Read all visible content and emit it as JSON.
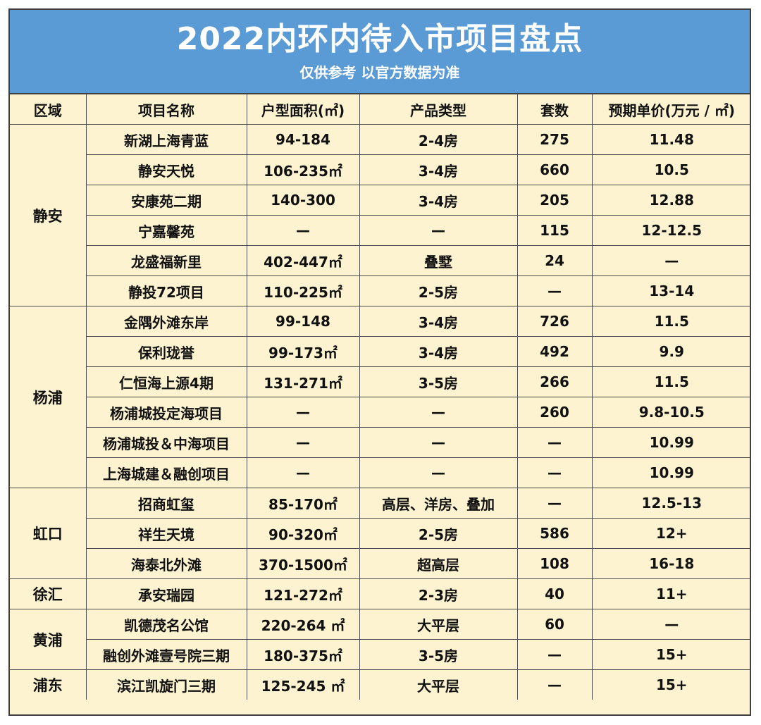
{
  "title": "2022内环内待入市项目盘点",
  "subtitle": "仅供参考 以官方数据为准",
  "headers": [
    "区域",
    "项目名称",
    "户型面积(㎡)",
    "产品类型",
    "套数",
    "预期单价(万元 / ㎡)"
  ],
  "groups": [
    {
      "district": "静安",
      "rows": [
        {
          "name": "新湖上海青蓝",
          "area": "94-184",
          "type": "2-4房",
          "units": "275",
          "price": "11.48"
        },
        {
          "name": "静安天悦",
          "area": "106-235㎡",
          "type": "3-4房",
          "units": "660",
          "price": "10.5"
        },
        {
          "name": "安康苑二期",
          "area": "140-300",
          "type": "3-4房",
          "units": "205",
          "price": "12.88"
        },
        {
          "name": "宁嘉馨苑",
          "area": "—",
          "type": "—",
          "units": "115",
          "price": "12-12.5"
        },
        {
          "name": "龙盛福新里",
          "area": "402-447㎡",
          "type": "叠墅",
          "units": "24",
          "price": "—"
        },
        {
          "name": "静投72项目",
          "area": "110-225㎡",
          "type": "2-5房",
          "units": "—",
          "price": "13-14"
        }
      ]
    },
    {
      "district": "杨浦",
      "rows": [
        {
          "name": "金隅外滩东岸",
          "area": "99-148",
          "type": "3-4房",
          "units": "726",
          "price": "11.5"
        },
        {
          "name": "保利珑誉",
          "area": "99-173㎡",
          "type": "3-4房",
          "units": "492",
          "price": "9.9"
        },
        {
          "name": "仁恒海上源4期",
          "area": "131-271㎡",
          "type": "3-5房",
          "units": "266",
          "price": "11.5"
        },
        {
          "name": "杨浦城投定海项目",
          "area": "—",
          "type": "—",
          "units": "260",
          "price": "9.8-10.5"
        },
        {
          "name": "杨浦城投＆中海项目",
          "area": "—",
          "type": "—",
          "units": "—",
          "price": "10.99"
        },
        {
          "name": "上海城建＆融创项目",
          "area": "—",
          "type": "—",
          "units": "—",
          "price": "10.99"
        }
      ]
    },
    {
      "district": "虹口",
      "rows": [
        {
          "name": "招商虹玺",
          "area": "85-170㎡",
          "type": "高层、洋房、叠加",
          "units": "—",
          "price": "12.5-13"
        },
        {
          "name": "祥生天境",
          "area": "90-320㎡",
          "type": "2-5房",
          "units": "586",
          "price": "12+"
        },
        {
          "name": "海泰北外滩",
          "area": "370-1500㎡",
          "type": "超高层",
          "units": "108",
          "price": "16-18"
        }
      ]
    },
    {
      "district": "徐汇",
      "rows": [
        {
          "name": "承安瑞园",
          "area": "121-272㎡",
          "type": "2-3房",
          "units": "40",
          "price": "11+"
        }
      ]
    },
    {
      "district": "黄浦",
      "rows": [
        {
          "name": "凯德茂名公馆",
          "area": "220-264 ㎡",
          "type": "大平层",
          "units": "60",
          "price": "—"
        },
        {
          "name": "融创外滩壹号院三期",
          "area": "180-375㎡",
          "type": "3-5房",
          "units": "—",
          "price": "15+"
        }
      ]
    },
    {
      "district": "浦东",
      "rows": [
        {
          "name": "滨江凯旋门三期",
          "area": "125-245 ㎡",
          "type": "大平层",
          "units": "—",
          "price": "15+"
        }
      ]
    }
  ],
  "colors": {
    "banner": "#5b9bd5",
    "body": "#fdf3d1",
    "grid": "#4a4a4a"
  }
}
